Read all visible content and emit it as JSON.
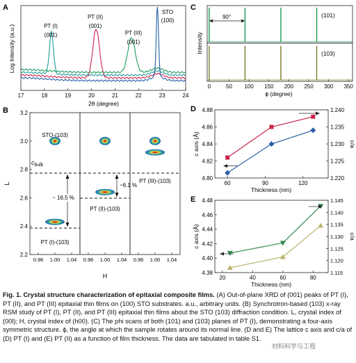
{
  "colors": {
    "ptI": "#1e9b9b",
    "ptII": "#d0214a",
    "ptIII": "#1a9a5a",
    "sto": "#1f5fa6",
    "phi101": "#1a9a5a",
    "phi103": "#7a7a2a",
    "d_red": "#c8264a",
    "d_blue": "#2a5fa3",
    "e_green": "#2f8a50",
    "e_tan": "#b8b26a"
  },
  "panelA": {
    "letter": "A",
    "ylabel": "Log Intensity (a.u.)",
    "xlabel": "2θ (degree)",
    "xticks": [
      "17",
      "18",
      "19",
      "20",
      "21",
      "22",
      "23",
      "24"
    ],
    "peaks": [
      {
        "name": "PT (I)",
        "plane": "(001)"
      },
      {
        "name": "PT (II)",
        "plane": "(001)"
      },
      {
        "name": "PT (III)",
        "plane": "(001)"
      },
      {
        "name": "STO",
        "plane": "(100)"
      }
    ]
  },
  "panelB": {
    "letter": "B",
    "ylabel": "L",
    "xlabel": "H",
    "yticks": [
      "2.2",
      "2.4",
      "2.6",
      "2.8",
      "3.0",
      "3.2"
    ],
    "xticks": [
      "0.96",
      "1.00",
      "1.04",
      "0.96",
      "1.00",
      "1.04",
      "0.96",
      "1.00",
      "1.04"
    ],
    "c_bulk": "c",
    "c_bulk_sub": "bulk",
    "sto_label": "STO-(103)",
    "pt1_label": "PT (I)-(103)",
    "pt2_label": "PT (II)-(103)",
    "pt3_label": "PT (III)-(103)",
    "pct1": "~ 16.5 %",
    "pct2": "~6.1 %"
  },
  "panelC": {
    "letter": "C",
    "ylabel": "Intensity",
    "xlabel": "ϕ (degree)",
    "xticks": [
      "0",
      "50",
      "100",
      "150",
      "200",
      "250",
      "300",
      "350"
    ],
    "angle_label": "90°",
    "top_label": "(101)",
    "bottom_label": "(103)"
  },
  "panelD": {
    "letter": "D",
    "xlabel": "Thickness (nm)",
    "ylabel_left": "c axis (Å)",
    "ylabel_right": "c/a",
    "xticks": [
      "60",
      "90",
      "120"
    ],
    "yticks_left": [
      "4.80",
      "4.82",
      "4.84",
      "4.86",
      "4.88"
    ],
    "yticks_right": [
      "1.220",
      "1.225",
      "1.230",
      "1.235",
      "1.240"
    ]
  },
  "panelE": {
    "letter": "E",
    "xlabel": "Thickness (nm)",
    "ylabel_left": "c axis (Å)",
    "ylabel_right": "c/a",
    "xticks": [
      "20",
      "40",
      "60",
      "80"
    ],
    "yticks_left": [
      "4.38",
      "4.40",
      "4.42",
      "4.44",
      "4.46",
      "4.48"
    ],
    "yticks_right": [
      "1.115",
      "1.120",
      "1.125",
      "1.130",
      "1.135",
      "1.140",
      "1.145"
    ]
  },
  "caption": {
    "title": "Fig. 1. Crystal structure characterization of epitaxial composite films.",
    "body": " (A) Out-of-plane XRD of (001) peaks of PT (I), PT (II), and PT (III) epitaxial thin films on (100) STO substrates. a.u., arbitrary units. (B) Synchrotron-based (103) x-ray RSM study of PT (I), PT (II), and PT (III) epitaxial thin films about the STO (103) diffraction condition. L, crystal index of (00l); H, crystal index of (h00). (C) The phi scans of both (101) and (103) planes of PT (I), demonstrating a four-axis symmetric structure. ϕ, the angle at which the sample rotates around its normal line. (D and E) The lattice c axis and c/a of (D) PT (I) and (E) PT (II) as a function of film thickness. The data are tabulated in table S1."
  },
  "watermark": "材料科学与工程",
  "chart_data": [
    {
      "type": "line",
      "panel": "A",
      "xlabel": "2θ (degree)",
      "ylabel": "Log Intensity (a.u.)",
      "xlim": [
        17,
        24
      ],
      "series": [
        {
          "name": "PT (I)",
          "peak_x": 18.3
        },
        {
          "name": "PT (II)",
          "peak_x": 20.2
        },
        {
          "name": "PT (III)",
          "peak_x": 21.7
        },
        {
          "name": "STO",
          "peak_x": 22.8
        }
      ]
    },
    {
      "type": "heatmap",
      "panel": "B",
      "xlabel": "H",
      "ylabel": "L",
      "ylim": [
        2.2,
        3.2
      ],
      "xlim": [
        0.94,
        1.06
      ],
      "c_bulk": 2.81,
      "spots": [
        {
          "panel": 1,
          "name": "STO-(103)",
          "H": 1.0,
          "L": 3.0
        },
        {
          "panel": 1,
          "name": "PT (I)-(103)",
          "H": 1.0,
          "L": 2.43
        },
        {
          "panel": 2,
          "name": "STO-(103)",
          "H": 1.0,
          "L": 3.0
        },
        {
          "panel": 2,
          "name": "PT (II)-(103)",
          "H": 1.0,
          "L": 2.64
        },
        {
          "panel": 3,
          "name": "STO-(103)",
          "H": 1.0,
          "L": 3.0
        },
        {
          "panel": 3,
          "name": "PT (III)-(103)",
          "H": 1.0,
          "L": 2.92
        }
      ]
    },
    {
      "type": "line",
      "panel": "C",
      "xlabel": "ϕ (degree)",
      "ylabel": "Intensity",
      "xlim": [
        -5,
        360
      ],
      "series": [
        {
          "name": "(101)",
          "peaks": [
            0,
            90,
            180,
            270
          ]
        },
        {
          "name": "(103)",
          "peaks": [
            0,
            90,
            180,
            270
          ]
        }
      ]
    },
    {
      "type": "line",
      "panel": "D",
      "xlabel": "Thickness (nm)",
      "x": [
        60,
        95,
        128
      ],
      "ylim_left": [
        4.8,
        4.88
      ],
      "ylim_right": [
        1.22,
        1.24
      ],
      "series": [
        {
          "axis": "left",
          "values": [
            4.824,
            4.86,
            4.872
          ]
        },
        {
          "axis": "right",
          "values": [
            1.2215,
            1.23,
            1.234
          ]
        }
      ]
    },
    {
      "type": "line",
      "panel": "E",
      "xlabel": "Thickness (nm)",
      "x": [
        25,
        60,
        85
      ],
      "ylim_left": [
        4.38,
        4.48
      ],
      "ylim_right": [
        1.115,
        1.145
      ],
      "series": [
        {
          "axis": "left",
          "values": [
            4.407,
            4.421,
            4.472
          ]
        },
        {
          "axis": "right",
          "values": [
            1.117,
            1.1215,
            1.1345
          ]
        }
      ]
    }
  ]
}
